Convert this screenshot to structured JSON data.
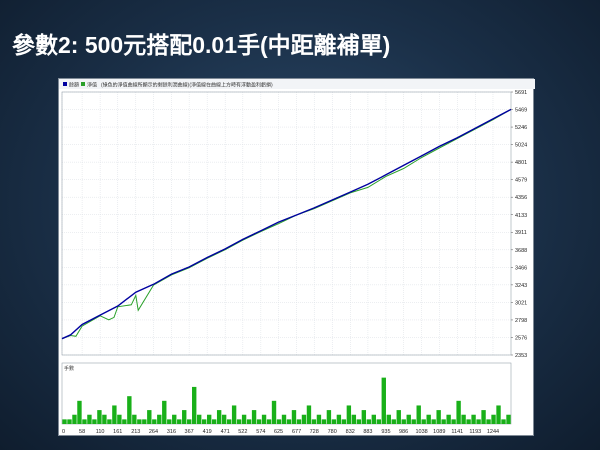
{
  "slide": {
    "title": "參數2: 500元搭配0.01手(中距離補單)"
  },
  "window": {
    "legend_items": [
      "餘額",
      "淨值"
    ],
    "legend_colors": [
      "#0000a0",
      "#2aa02a"
    ],
    "header_text": "(綠色的淨值曲線所顯示的剩餘利潤曲線)(淨值線在曲線上方時有浮動盈利虧損)",
    "volume_label": "手數"
  },
  "chart_data": {
    "type": "line",
    "title": "",
    "xlabel": "",
    "ylabel": "",
    "ylim": [
      2353,
      5691
    ],
    "xlim": [
      0,
      1296
    ],
    "y_ticks": [
      5691,
      5469,
      5246,
      5024,
      4801,
      4579,
      4356,
      4133,
      3911,
      3688,
      3466,
      3243,
      3021,
      2798,
      2576,
      2353
    ],
    "x_ticks": [
      0,
      58,
      110,
      161,
      213,
      264,
      316,
      367,
      419,
      471,
      522,
      574,
      625,
      677,
      728,
      780,
      832,
      883,
      935,
      986,
      1038,
      1089,
      1141,
      1193,
      1244
    ],
    "grid": true,
    "series": [
      {
        "name": "餘額",
        "color": "#0000a0",
        "x": [
          0,
          25,
          58,
          110,
          161,
          213,
          264,
          316,
          367,
          419,
          471,
          522,
          574,
          625,
          677,
          728,
          780,
          832,
          883,
          935,
          986,
          1038,
          1089,
          1141,
          1193,
          1244,
          1296
        ],
        "y": [
          2560,
          2610,
          2740,
          2860,
          2975,
          3150,
          3250,
          3380,
          3470,
          3590,
          3700,
          3820,
          3930,
          4040,
          4130,
          4220,
          4320,
          4420,
          4520,
          4640,
          4760,
          4880,
          5000,
          5110,
          5230,
          5350,
          5470
        ]
      },
      {
        "name": "淨值",
        "color": "#2aa02a",
        "x": [
          0,
          25,
          40,
          58,
          110,
          135,
          150,
          161,
          200,
          213,
          220,
          264,
          316,
          367,
          419,
          471,
          522,
          574,
          625,
          677,
          728,
          780,
          832,
          883,
          935,
          986,
          1038,
          1089,
          1141,
          1193,
          1244,
          1296
        ],
        "y": [
          2560,
          2600,
          2590,
          2720,
          2850,
          2800,
          2830,
          2965,
          2990,
          3110,
          2920,
          3240,
          3370,
          3460,
          3580,
          3690,
          3810,
          3920,
          4020,
          4130,
          4210,
          4310,
          4410,
          4480,
          4620,
          4720,
          4860,
          4980,
          5100,
          5220,
          5340,
          5470
        ]
      }
    ],
    "volume": {
      "name": "手數",
      "values": [
        0.01,
        0.01,
        0.02,
        0.05,
        0.01,
        0.02,
        0.01,
        0.03,
        0.02,
        0.01,
        0.04,
        0.02,
        0.01,
        0.06,
        0.02,
        0.01,
        0.01,
        0.03,
        0.01,
        0.02,
        0.05,
        0.01,
        0.02,
        0.01,
        0.03,
        0.01,
        0.08,
        0.02,
        0.01,
        0.02,
        0.01,
        0.03,
        0.02,
        0.01,
        0.04,
        0.01,
        0.02,
        0.01,
        0.03,
        0.01,
        0.02,
        0.01,
        0.05,
        0.01,
        0.02,
        0.01,
        0.03,
        0.01,
        0.02,
        0.04,
        0.01,
        0.02,
        0.01,
        0.03,
        0.01,
        0.02,
        0.01,
        0.04,
        0.02,
        0.01,
        0.03,
        0.01,
        0.02,
        0.01,
        0.1,
        0.02,
        0.01,
        0.03,
        0.01,
        0.02,
        0.01,
        0.04,
        0.01,
        0.02,
        0.01,
        0.03,
        0.01,
        0.02,
        0.01,
        0.05,
        0.02,
        0.01,
        0.02,
        0.01,
        0.03,
        0.01,
        0.02,
        0.04,
        0.01,
        0.02
      ]
    }
  }
}
